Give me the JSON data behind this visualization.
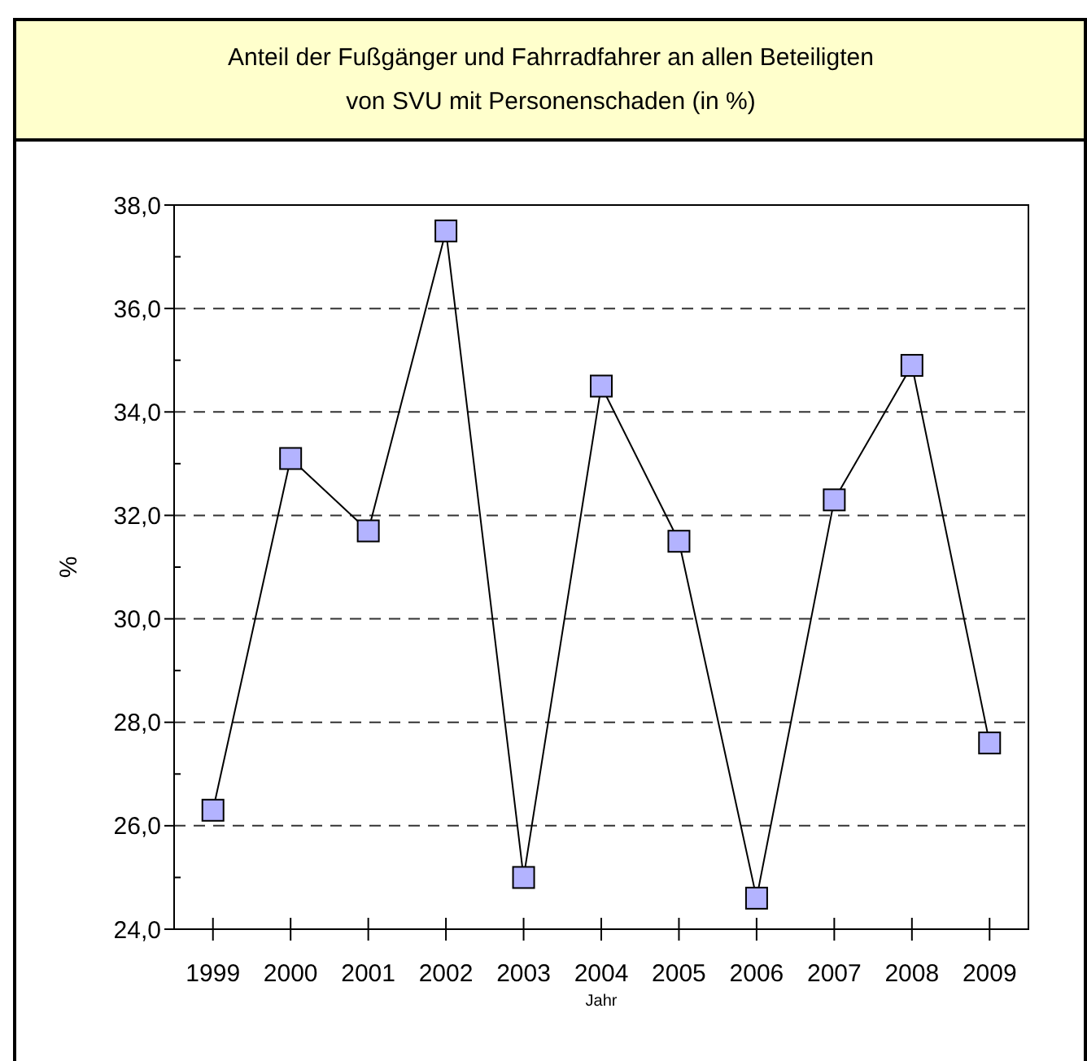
{
  "chart_data": {
    "type": "line",
    "title": "Anteil der Fußgänger und Fahrradfahrer an allen Beteiligten\nvon SVU mit Personenschaden (in %)",
    "xlabel": "Jahr",
    "ylabel": "%",
    "categories": [
      "1999",
      "2000",
      "2001",
      "2002",
      "2003",
      "2004",
      "2005",
      "2006",
      "2007",
      "2008",
      "2009"
    ],
    "series": [
      {
        "color": "#b3b3ff",
        "values": [
          26.3,
          33.1,
          31.7,
          37.5,
          25.0,
          34.5,
          31.5,
          24.6,
          32.3,
          34.9,
          27.6
        ]
      }
    ],
    "ylim": [
      24,
      38
    ],
    "yticks": [
      {
        "value": 24,
        "label": "24,0"
      },
      {
        "value": 25,
        "label": null
      },
      {
        "value": 26,
        "label": "26,0"
      },
      {
        "value": 27,
        "label": null
      },
      {
        "value": 28,
        "label": "28,0"
      },
      {
        "value": 29,
        "label": null
      },
      {
        "value": 30,
        "label": "30,0"
      },
      {
        "value": 31,
        "label": null
      },
      {
        "value": 32,
        "label": "32,0"
      },
      {
        "value": 33,
        "label": null
      },
      {
        "value": 34,
        "label": "34,0"
      },
      {
        "value": 35,
        "label": null
      },
      {
        "value": 36,
        "label": "36,0"
      },
      {
        "value": 37,
        "label": null
      },
      {
        "value": 38,
        "label": "38,0"
      }
    ],
    "grid": "y",
    "marker": "square",
    "line_style": "solid"
  }
}
